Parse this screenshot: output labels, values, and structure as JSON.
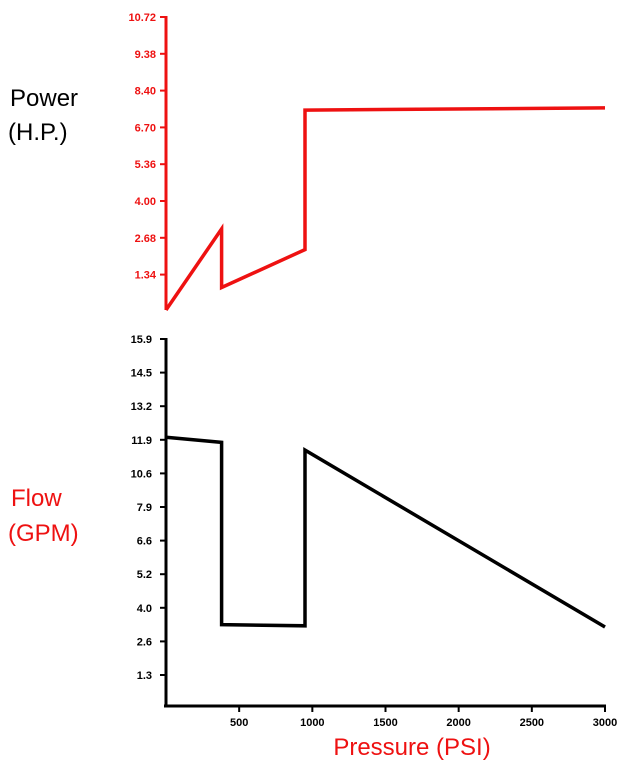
{
  "chart_data": [
    {
      "type": "line",
      "ylabel_line1": "Power",
      "ylabel_line2": "(H.P.)",
      "axis_color": "#ee1111",
      "ylabel_color": "#000000",
      "yticks": [
        "10.72",
        "9.38",
        "8.40",
        "6.70",
        "5.36",
        "4.00",
        "2.68",
        "1.34"
      ],
      "series": [
        {
          "x": [
            0,
            380,
            380,
            950,
            950,
            3000
          ],
          "y": [
            0,
            3.0,
            0.85,
            2.25,
            7.5,
            7.6
          ]
        }
      ]
    },
    {
      "type": "line",
      "ylabel_line1": "Flow",
      "ylabel_line2": "(GPM)",
      "xlabel": "Pressure (PSI)",
      "axis_color": "#000000",
      "ylabel_color": "#ee1111",
      "yticks": [
        "15.9",
        "14.5",
        "13.2",
        "11.9",
        "10.6",
        "7.9",
        "6.6",
        "5.2",
        "4.0",
        "2.6",
        "1.3"
      ],
      "xticks": [
        "500",
        "1000",
        "1500",
        "2000",
        "2500",
        "3000"
      ],
      "series": [
        {
          "x": [
            0,
            380,
            380,
            950,
            950,
            3000
          ],
          "y": [
            12.0,
            11.8,
            3.3,
            3.25,
            11.5,
            3.2
          ]
        }
      ]
    }
  ]
}
